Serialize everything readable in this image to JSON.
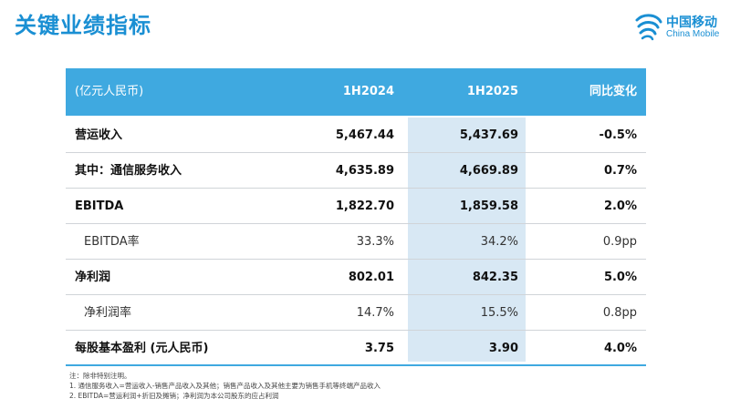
{
  "title": "关键业绩指标",
  "logo": {
    "name_cn": "中国移动",
    "name_en": "China Mobile",
    "color": "#1a8fd3"
  },
  "colors": {
    "header_bg": "#3fa9e0",
    "highlight_col": "#d8e8f4",
    "title": "#1a8fd3"
  },
  "table": {
    "header": {
      "label": "(亿元人民币)",
      "col1": "1H2024",
      "col2": "1H2025",
      "col3": "同比变化"
    },
    "rows": [
      {
        "label": "营运收入",
        "v2024": "5,467.44",
        "v2025": "5,437.69",
        "change": "-0.5%",
        "bold": true,
        "indent": false
      },
      {
        "label": "其中：通信服务收入",
        "v2024": "4,635.89",
        "v2025": "4,669.89",
        "change": "0.7%",
        "bold": true,
        "indent": false
      },
      {
        "label": "EBITDA",
        "v2024": "1,822.70",
        "v2025": "1,859.58",
        "change": "2.0%",
        "bold": true,
        "indent": false
      },
      {
        "label": "EBITDA率",
        "v2024": "33.3%",
        "v2025": "34.2%",
        "change": "0.9pp",
        "bold": false,
        "indent": true
      },
      {
        "label": "净利润",
        "v2024": "802.01",
        "v2025": "842.35",
        "change": "5.0%",
        "bold": true,
        "indent": false
      },
      {
        "label": "净利润率",
        "v2024": "14.7%",
        "v2025": "15.5%",
        "change": "0.8pp",
        "bold": false,
        "indent": true
      },
      {
        "label": "每股基本盈利 (元人民币)",
        "v2024": "3.75",
        "v2025": "3.90",
        "change": "4.0%",
        "bold": true,
        "indent": false
      }
    ]
  },
  "notes": [
    "注：除非特别注明。",
    "1.  通信服务收入=营运收入-销售产品收入及其他；销售产品收入及其他主要为销售手机等终端产品收入",
    "2.  EBITDA=营运利润+折旧及摊销；净利润为本公司股东的应占利润"
  ]
}
